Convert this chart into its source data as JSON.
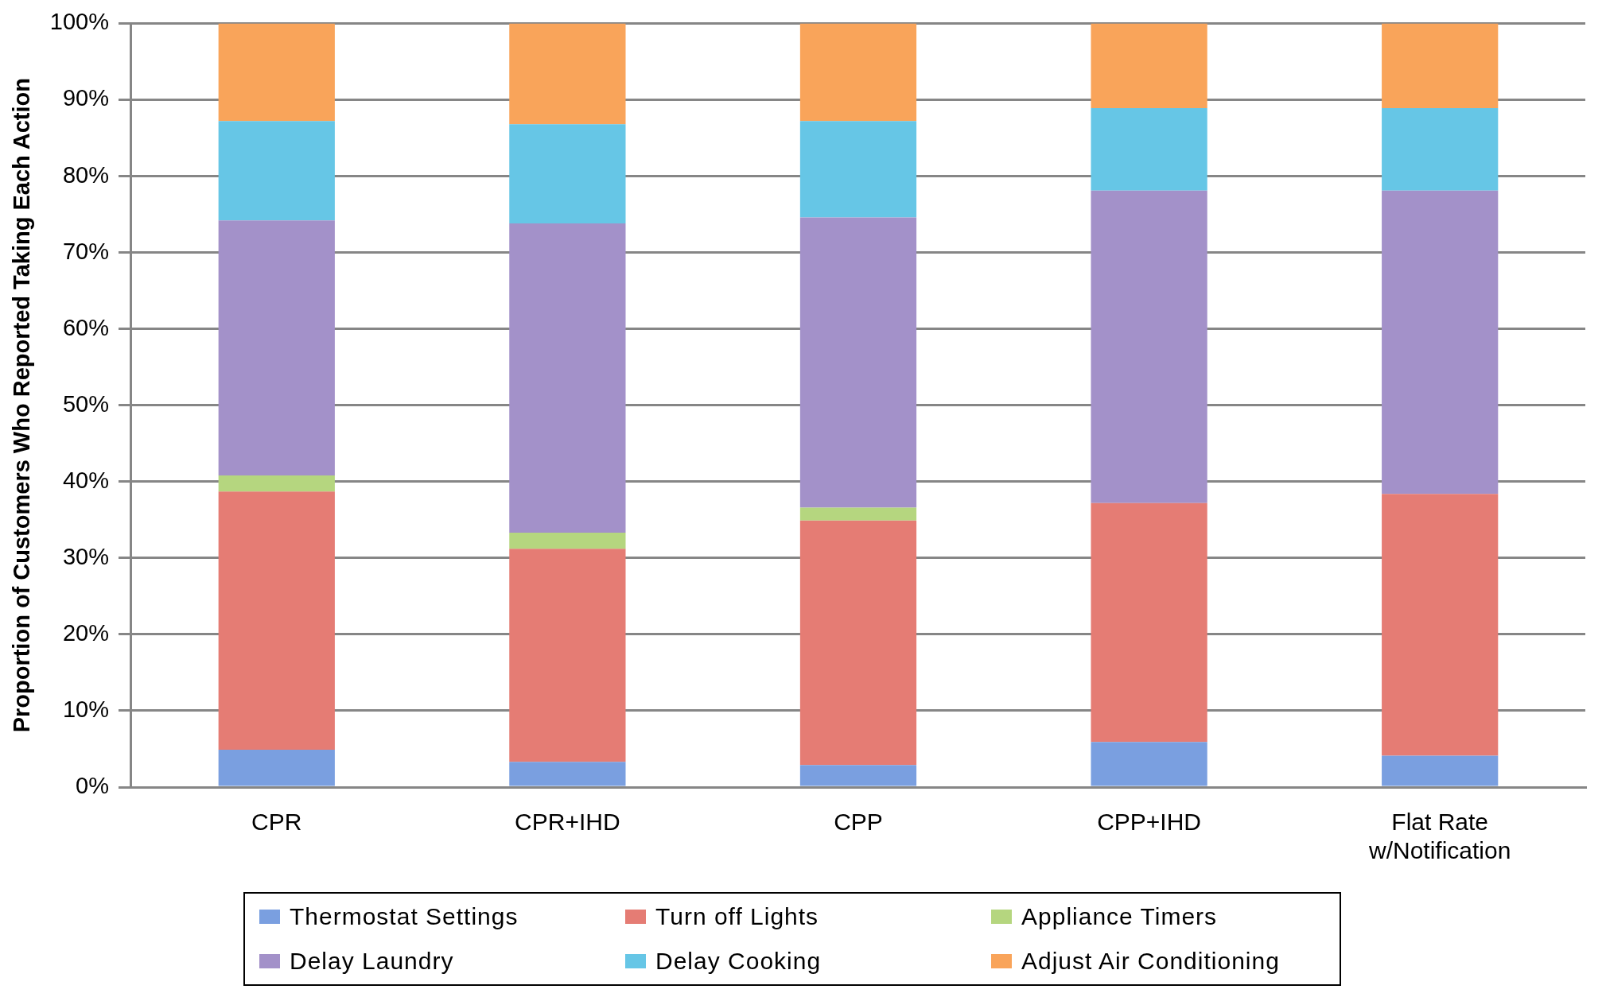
{
  "chart_data": {
    "type": "bar",
    "stacked": true,
    "ylabel": "Proportion of Customers Who Reported Taking Each Action",
    "categories": [
      "CPR",
      "CPR+IHD",
      "CPP",
      "CPP+IHD",
      "Flat Rate w/Notification"
    ],
    "series": [
      {
        "name": "Thermostat Settings",
        "color": "#7a9fe0",
        "values": [
          4.9,
          3.3,
          2.9,
          5.9,
          4.1
        ]
      },
      {
        "name": "Turn off Lights",
        "color": "#e57c74",
        "values": [
          33.8,
          27.9,
          32.0,
          31.3,
          34.3
        ]
      },
      {
        "name": "Appliance Timers",
        "color": "#b5d67f",
        "values": [
          2.1,
          2.1,
          1.7,
          0,
          0
        ]
      },
      {
        "name": "Delay Laundry",
        "color": "#a391c9",
        "values": [
          33.4,
          40.5,
          38.0,
          40.9,
          39.7
        ]
      },
      {
        "name": "Delay Cooking",
        "color": "#66c6e6",
        "values": [
          13.0,
          13.0,
          12.6,
          10.8,
          10.8
        ]
      },
      {
        "name": "Adjust Air Conditioning",
        "color": "#f9a45a",
        "values": [
          12.8,
          13.2,
          12.8,
          11.1,
          11.1
        ]
      }
    ],
    "ylim": [
      0,
      100
    ],
    "yticks": [
      {
        "value": 0,
        "label": "0%"
      },
      {
        "value": 10,
        "label": "10%"
      },
      {
        "value": 20,
        "label": "20%"
      },
      {
        "value": 30,
        "label": "30%"
      },
      {
        "value": 40,
        "label": "40%"
      },
      {
        "value": 50,
        "label": "50%"
      },
      {
        "value": 60,
        "label": "60%"
      },
      {
        "value": 70,
        "label": "70%"
      },
      {
        "value": 80,
        "label": "80%"
      },
      {
        "value": 90,
        "label": "90%"
      },
      {
        "value": 100,
        "label": "100%"
      }
    ],
    "grid": "y",
    "legend": "bottom"
  }
}
